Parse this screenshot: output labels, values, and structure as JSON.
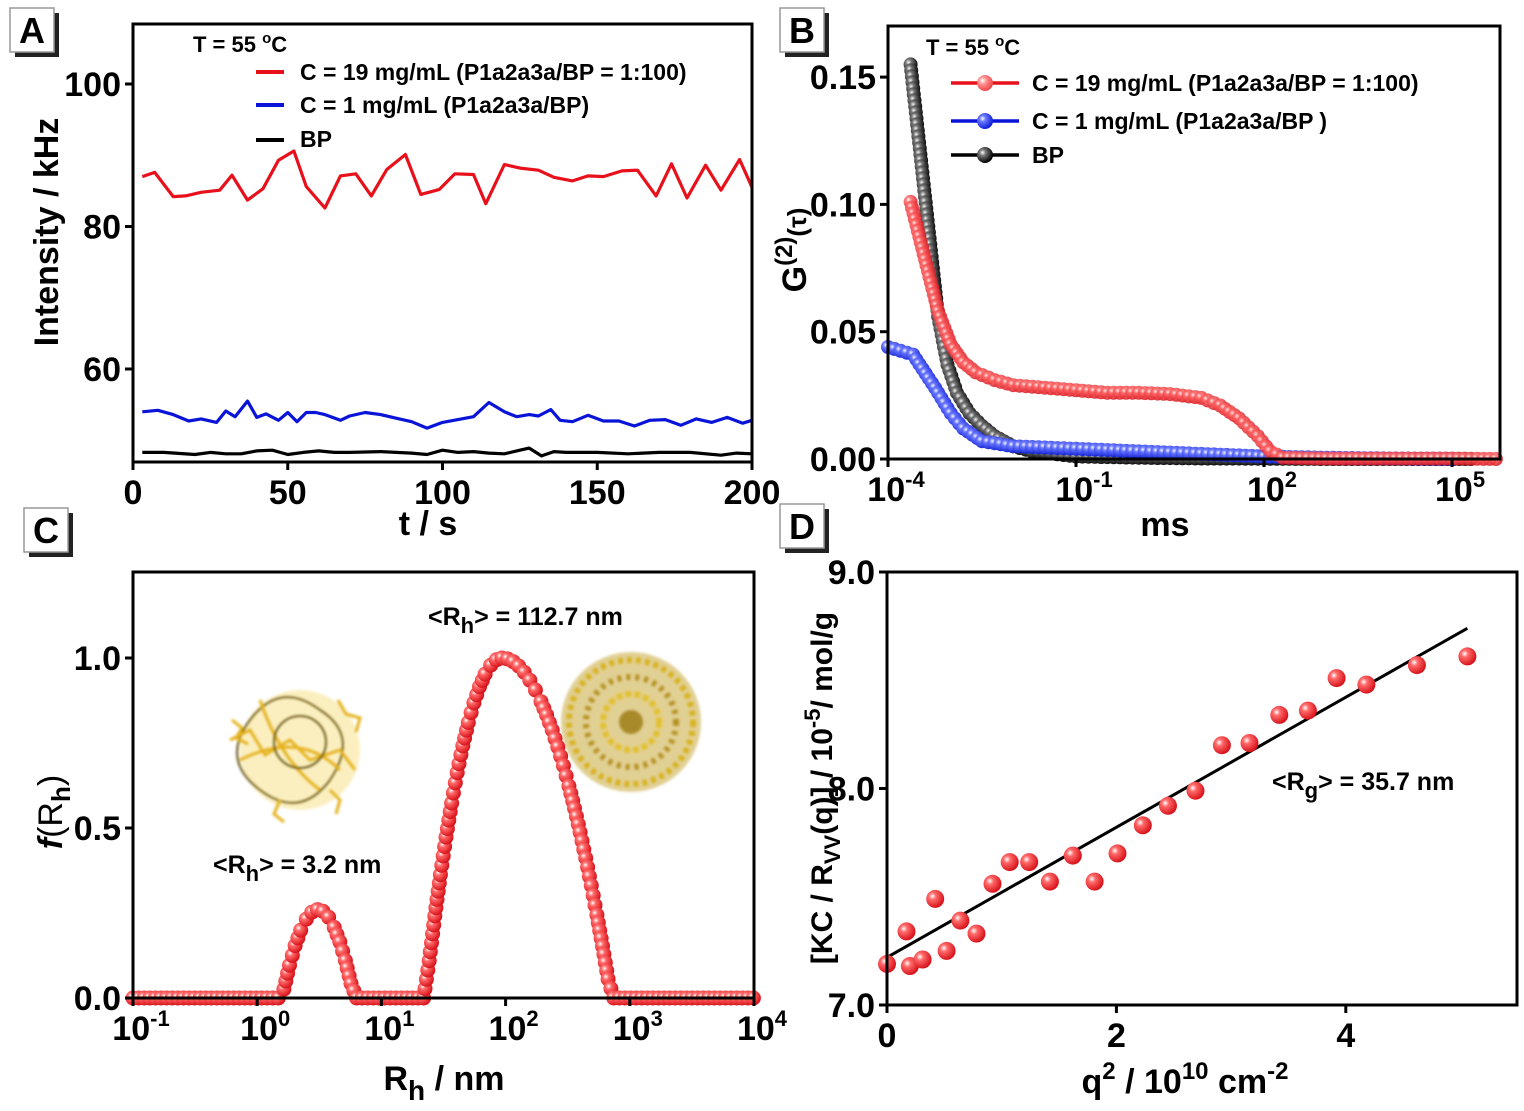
{
  "panels": {
    "A": {
      "label": "A"
    },
    "B": {
      "label": "B"
    },
    "C": {
      "label": "C"
    },
    "D": {
      "label": "D"
    }
  },
  "colors": {
    "red": "#e8101a",
    "blue": "#0a14d8",
    "black": "#000000",
    "marker_red": "#e8242a",
    "marker_blue": "#1a2ae0",
    "marker_black": "#111111"
  },
  "chart_data": [
    {
      "id": "A",
      "type": "line",
      "xlabel": "t / s",
      "ylabel": "Intensity / kHz",
      "xlim": [
        0,
        200
      ],
      "ylim": [
        47,
        110
      ],
      "xticks": [
        0,
        50,
        100,
        150,
        200
      ],
      "yticks": [
        60,
        80,
        100
      ],
      "xtick_labels": [
        "0",
        "50",
        "100",
        "150",
        "200"
      ],
      "ytick_labels": [
        "60",
        "80",
        "100"
      ],
      "annotation": "T = 55 °C",
      "legend_position": "top-right",
      "series": [
        {
          "name": "C = 19 mg/mL (P1a2a3a/BP = 1:100)",
          "color": "red",
          "x": [
            3,
            7,
            13,
            17,
            22,
            28,
            32,
            37,
            42,
            47,
            52,
            56,
            62,
            67,
            72,
            77,
            82,
            88,
            93,
            99,
            104,
            110,
            114,
            120,
            125,
            131,
            136,
            142,
            147,
            152,
            158,
            163,
            169,
            174,
            179,
            185,
            190,
            196,
            200
          ],
          "y": [
            87.0,
            87.6,
            84.2,
            84.3,
            84.8,
            85.1,
            87.2,
            83.7,
            85.3,
            89.3,
            90.6,
            85.6,
            82.6,
            87.1,
            87.4,
            84.3,
            88.0,
            90.1,
            84.5,
            85.2,
            87.4,
            87.3,
            83.2,
            88.7,
            88.2,
            87.9,
            86.9,
            86.4,
            87.1,
            87.0,
            87.8,
            87.9,
            84.3,
            88.8,
            84.0,
            88.6,
            85.1,
            89.4,
            85.5
          ]
        },
        {
          "name": "C = 1 mg/mL (P1a2a3a/BP)",
          "color": "blue",
          "x": [
            3,
            8,
            13,
            18,
            22,
            27,
            30,
            33,
            37,
            40,
            43,
            47,
            50,
            53,
            56,
            59,
            62,
            67,
            70,
            75,
            80,
            85,
            90,
            95,
            100,
            105,
            110,
            115,
            120,
            124,
            128,
            131,
            135,
            138,
            142,
            147,
            152,
            157,
            162,
            167,
            172,
            177,
            182,
            187,
            192,
            197,
            200
          ],
          "y": [
            54.0,
            54.2,
            53.6,
            52.7,
            53.0,
            52.5,
            54.1,
            53.3,
            55.5,
            53.2,
            53.7,
            52.8,
            53.9,
            52.6,
            53.9,
            53.9,
            53.6,
            52.8,
            53.4,
            53.9,
            53.6,
            53.1,
            52.6,
            51.7,
            52.5,
            52.9,
            53.3,
            55.3,
            54.0,
            53.3,
            53.6,
            53.4,
            54.3,
            52.8,
            52.6,
            53.5,
            52.7,
            52.7,
            52.0,
            52.8,
            52.9,
            52.1,
            53.0,
            52.5,
            53.2,
            52.4,
            52.8
          ]
        },
        {
          "name": "BP",
          "color": "black",
          "x": [
            3,
            10,
            20,
            25,
            30,
            35,
            40,
            45,
            50,
            55,
            60,
            65,
            70,
            80,
            85,
            90,
            95,
            100,
            105,
            110,
            115,
            120,
            125,
            128,
            132,
            136,
            140,
            150,
            160,
            170,
            180,
            190,
            195,
            200
          ],
          "y": [
            48.3,
            48.3,
            48.0,
            48.3,
            48.1,
            48.1,
            48.5,
            48.6,
            48.0,
            48.3,
            48.5,
            48.3,
            48.3,
            48.4,
            48.3,
            48.2,
            48.0,
            48.6,
            48.3,
            48.4,
            48.2,
            48.1,
            48.6,
            48.9,
            47.8,
            48.4,
            48.3,
            48.3,
            48.1,
            48.3,
            48.3,
            47.9,
            48.2,
            48.1
          ]
        }
      ]
    },
    {
      "id": "B",
      "type": "scatter",
      "xlabel": "ms",
      "ylabel": "G(2)(τ)",
      "xscale": "log",
      "xlim_log10": [
        -4,
        6.2
      ],
      "ylim": [
        0,
        0.165
      ],
      "xticks_log10": [
        -4,
        -1,
        2,
        5
      ],
      "xtick_labels": [
        "10",
        "10",
        "10",
        "10"
      ],
      "xtick_exponents": [
        "-4",
        "-1",
        "2",
        "5"
      ],
      "yticks": [
        0.0,
        0.05,
        0.1,
        0.15
      ],
      "ytick_labels": [
        "0.00",
        "0.05",
        "0.10",
        "0.15"
      ],
      "annotation": "T = 55 °C",
      "legend_position": "top-right",
      "series": [
        {
          "name": "C = 19 mg/mL (P1a2a3a/BP = 1:100)",
          "color": "red",
          "points_log10x": [
            [
              -3.64,
              0.101
            ],
            [
              -3.2,
              0.058
            ],
            [
              -3.0,
              0.045
            ],
            [
              -2.8,
              0.038
            ],
            [
              -2.6,
              0.034
            ],
            [
              -2.3,
              0.031
            ],
            [
              -2.0,
              0.029
            ],
            [
              -1.5,
              0.028
            ],
            [
              -1.0,
              0.027
            ],
            [
              -0.5,
              0.026
            ],
            [
              0,
              0.026
            ],
            [
              0.5,
              0.0255
            ],
            [
              1.0,
              0.024
            ],
            [
              1.3,
              0.021
            ],
            [
              1.6,
              0.016
            ],
            [
              1.9,
              0.009
            ],
            [
              2.1,
              0.003
            ],
            [
              2.3,
              0.0005
            ],
            [
              3,
              0.0002
            ],
            [
              4,
              0.0002
            ],
            [
              5,
              0.0002
            ],
            [
              5.7,
              0.0
            ]
          ]
        },
        {
          "name": "C = 1 mg/mL (P1a2a3a/BP )",
          "color": "blue",
          "points_log10x": [
            [
              -4.0,
              0.044
            ],
            [
              -3.6,
              0.041
            ],
            [
              -3.25,
              0.028
            ],
            [
              -3.0,
              0.018
            ],
            [
              -2.8,
              0.012
            ],
            [
              -2.5,
              0.007
            ],
            [
              -2.0,
              0.005
            ],
            [
              -1.5,
              0.0045
            ],
            [
              -1.0,
              0.004
            ],
            [
              -0.5,
              0.0035
            ],
            [
              0,
              0.003
            ],
            [
              1,
              0.002
            ],
            [
              2,
              0.001
            ],
            [
              3,
              0.0005
            ],
            [
              4,
              0.0002
            ],
            [
              5,
              0.0
            ]
          ]
        },
        {
          "name": "BP",
          "color": "black",
          "points_log10x": [
            [
              -3.64,
              0.155
            ],
            [
              -3.2,
              0.056
            ],
            [
              -3.05,
              0.037
            ],
            [
              -2.9,
              0.026
            ],
            [
              -2.7,
              0.018
            ],
            [
              -2.5,
              0.013
            ],
            [
              -2.3,
              0.009
            ],
            [
              -2.0,
              0.005
            ],
            [
              -1.7,
              0.003
            ],
            [
              -1.0,
              0.001
            ],
            [
              0,
              0.0005
            ],
            [
              1,
              0.0002
            ],
            [
              2,
              0.0001
            ],
            [
              3,
              0.0
            ],
            [
              4,
              0.0
            ],
            [
              5.3,
              0.0
            ]
          ]
        }
      ]
    },
    {
      "id": "C",
      "type": "scatter",
      "xlabel": "Rh / nm",
      "ylabel": "f(Rh)",
      "xscale": "log",
      "xlim_log10": [
        -1,
        4
      ],
      "ylim": [
        0,
        1.25
      ],
      "xticks_log10": [
        -1,
        0,
        1,
        2,
        3,
        4
      ],
      "xtick_labels": [
        "10",
        "10",
        "10",
        "10",
        "10",
        "10"
      ],
      "xtick_exponents": [
        "-1",
        "0",
        "1",
        "2",
        "3",
        "4"
      ],
      "yticks": [
        0.0,
        0.5,
        1.0
      ],
      "ytick_labels": [
        "0.0",
        "0.5",
        "1.0"
      ],
      "peaks": [
        {
          "label": "<Rh> = 3.2 nm",
          "center_log10": 0.49,
          "height": 0.26,
          "lo_log10": 0.2,
          "hi_log10": 0.78
        },
        {
          "label": "<Rh> = 112.7 nm",
          "center_log10": 1.97,
          "height": 1.0,
          "lo_log10": 1.35,
          "hi_log10": 2.85
        }
      ],
      "annotations": [
        "<Rh> = 3.2 nm",
        "<Rh> = 112.7 nm"
      ],
      "illustrations": [
        "small-polymer-cluster",
        "large-polymer-aggregate"
      ]
    },
    {
      "id": "D",
      "type": "scatter",
      "xlabel": "q2 / 1010 cm-2",
      "ylabel": "[KC / RVV(q)] / 10-5 / mol/g",
      "xlim": [
        0,
        5.7
      ],
      "ylim": [
        7.0,
        9.0
      ],
      "xticks": [
        0,
        2,
        4
      ],
      "xtick_labels": [
        "0",
        "2",
        "4"
      ],
      "yticks": [
        7.0,
        8.0,
        9.0
      ],
      "ytick_labels": [
        "7.0",
        "8.0",
        "9.0"
      ],
      "annotation": "<Rg> = 35.7 nm",
      "fit_line": {
        "x": [
          0,
          5.06
        ],
        "y": [
          7.22,
          8.74
        ]
      },
      "x": [
        0,
        0.17,
        0.2,
        0.31,
        0.42,
        0.52,
        0.64,
        0.78,
        0.92,
        1.07,
        1.24,
        1.42,
        1.62,
        1.81,
        2.01,
        2.23,
        2.45,
        2.69,
        2.92,
        3.16,
        3.42,
        3.67,
        3.92,
        4.18,
        4.62,
        5.06
      ],
      "y": [
        7.19,
        7.34,
        7.18,
        7.21,
        7.49,
        7.25,
        7.39,
        7.33,
        7.56,
        7.66,
        7.66,
        7.57,
        7.69,
        7.57,
        7.7,
        7.83,
        7.92,
        7.99,
        8.2,
        8.21,
        8.34,
        8.36,
        8.51,
        8.48,
        8.57,
        8.61
      ]
    }
  ],
  "text": {
    "A_annotation": "T = 55 ",
    "A_deg": "o",
    "A_unit": "C",
    "A_xlabel": "t / s",
    "A_ylabel": "Intensity / kHz",
    "A_leg1": "C = 19 mg/mL (P1a2a3a/BP = 1:100)",
    "A_leg2": "C = 1 mg/mL (P1a2a3a/BP)",
    "A_leg3": "BP",
    "B_annotation": "T = 55 ",
    "B_deg": "o",
    "B_unit": "C",
    "B_xlabel": "ms",
    "B_ylabel_G": "G",
    "B_ylabel_sup": "(2)",
    "B_ylabel_tau": "(τ)",
    "B_leg1": "C = 19 mg/mL (P1a2a3a/BP = 1:100)",
    "B_leg2": "C = 1 mg/mL (P1a2a3a/BP )",
    "B_leg3": "BP",
    "C_ann1_pre": "<R",
    "C_ann1_sub": "h",
    "C_ann1_post": "> = 3.2 nm",
    "C_ann2_pre": "<R",
    "C_ann2_sub": "h",
    "C_ann2_post": "> = 112.7 nm",
    "C_xlabel_R": "R",
    "C_xlabel_sub": "h",
    "C_xlabel_post": " / nm",
    "C_ylabel_f": "f",
    "C_ylabel_R": "(R",
    "C_ylabel_sub": "h",
    "C_ylabel_close": ")",
    "D_ann_pre": "<R",
    "D_ann_sub": "g",
    "D_ann_post": "> = 35.7 nm",
    "D_xlabel_q": "q",
    "D_xlabel_sup1": "2",
    "D_xlabel_mid": " / 10",
    "D_xlabel_sup2": "10",
    "D_xlabel_cm": " cm",
    "D_xlabel_sup3": "-2",
    "D_ylabel_pre": "[KC / R",
    "D_ylabel_sub": "VV",
    "D_ylabel_mid": "(q)] / 10",
    "D_ylabel_sup": "-5",
    "D_ylabel_post": "/ mol/g"
  }
}
